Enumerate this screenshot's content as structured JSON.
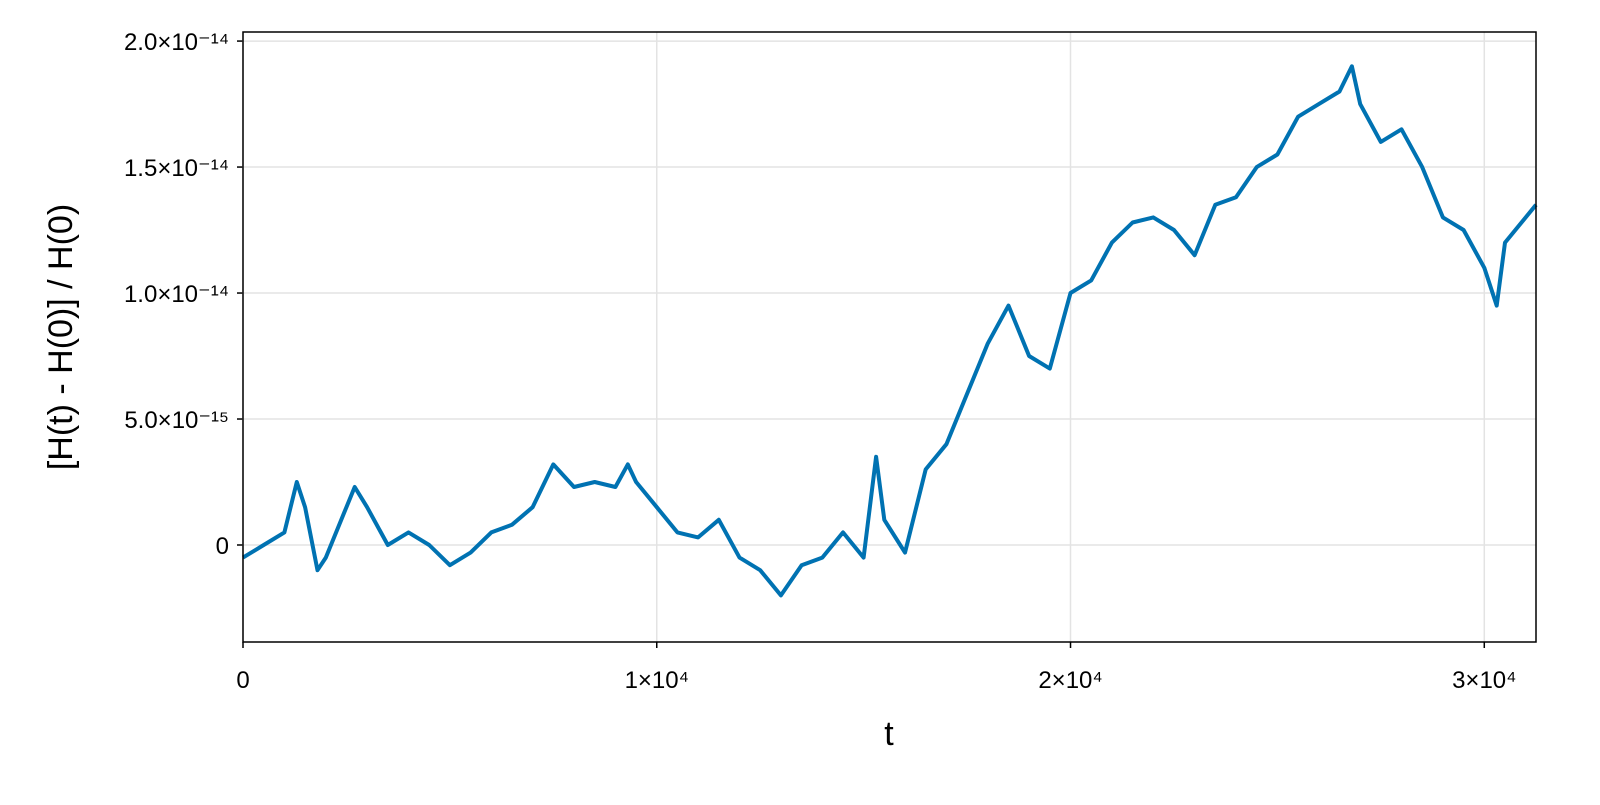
{
  "chart_data": {
    "type": "line",
    "xlabel": "t",
    "ylabel": "[H(t) - H(0)] / H(0)",
    "xlim": [
      0,
      31250
    ],
    "ylim": [
      -3.85e-15,
      2.036e-14
    ],
    "xticks": [
      0,
      {
        "value": 10000,
        "label": "1×10⁴"
      },
      {
        "value": 20000,
        "label": "2×10⁴"
      },
      {
        "value": 30000,
        "label": "3×10⁴"
      }
    ],
    "yticks": [
      0,
      {
        "value": 5e-15,
        "label": "5.0×10⁻¹⁵"
      },
      {
        "value": 1e-14,
        "label": "1.0×10⁻¹⁴"
      },
      {
        "value": 1.5e-14,
        "label": "1.5×10⁻¹⁴"
      },
      {
        "value": 2e-14,
        "label": "2.0×10⁻¹⁴"
      }
    ],
    "grid": true,
    "x": [
      0,
      500,
      1000,
      1300,
      1500,
      1800,
      2000,
      2500,
      2700,
      3000,
      3500,
      4000,
      4500,
      5000,
      5500,
      6000,
      6500,
      7000,
      7500,
      8000,
      8500,
      9000,
      9300,
      9500,
      10000,
      10500,
      11000,
      11500,
      12000,
      12500,
      13000,
      13500,
      14000,
      14500,
      15000,
      15300,
      15500,
      16000,
      16500,
      17000,
      17500,
      18000,
      18500,
      19000,
      19500,
      20000,
      20500,
      21000,
      21500,
      22000,
      22500,
      23000,
      23500,
      24000,
      24500,
      25000,
      25500,
      26000,
      26500,
      26800,
      27000,
      27500,
      28000,
      28500,
      29000,
      29500,
      30000,
      30300,
      30500,
      31000,
      31250
    ],
    "series": [
      {
        "color": "#0072b2",
        "values": [
          -5e-16,
          0.0,
          5e-16,
          2.5e-15,
          1.5e-15,
          -1e-15,
          -5e-16,
          1.5e-15,
          2.3e-15,
          1.5e-15,
          0.0,
          5e-16,
          0.0,
          -8e-16,
          -3e-16,
          5e-16,
          8e-16,
          1.5e-15,
          3.2e-15,
          2.3e-15,
          2.5e-15,
          2.3e-15,
          3.2e-15,
          2.5e-15,
          1.5e-15,
          5e-16,
          3e-16,
          1e-15,
          -5e-16,
          -1e-15,
          -2e-15,
          -8e-16,
          -5e-16,
          5e-16,
          -5e-16,
          3.5e-15,
          1e-15,
          -3e-16,
          3e-15,
          4e-15,
          6e-15,
          8e-15,
          9.5e-15,
          7.5e-15,
          7e-15,
          1e-14,
          1.05e-14,
          1.2e-14,
          1.28e-14,
          1.3e-14,
          1.25e-14,
          1.15e-14,
          1.35e-14,
          1.38e-14,
          1.5e-14,
          1.55e-14,
          1.7e-14,
          1.75e-14,
          1.8e-14,
          1.9e-14,
          1.75e-14,
          1.6e-14,
          1.65e-14,
          1.5e-14,
          1.3e-14,
          1.25e-14,
          1.1e-14,
          9.5e-15,
          1.2e-14,
          1.3e-14,
          1.35e-14
        ]
      }
    ]
  }
}
